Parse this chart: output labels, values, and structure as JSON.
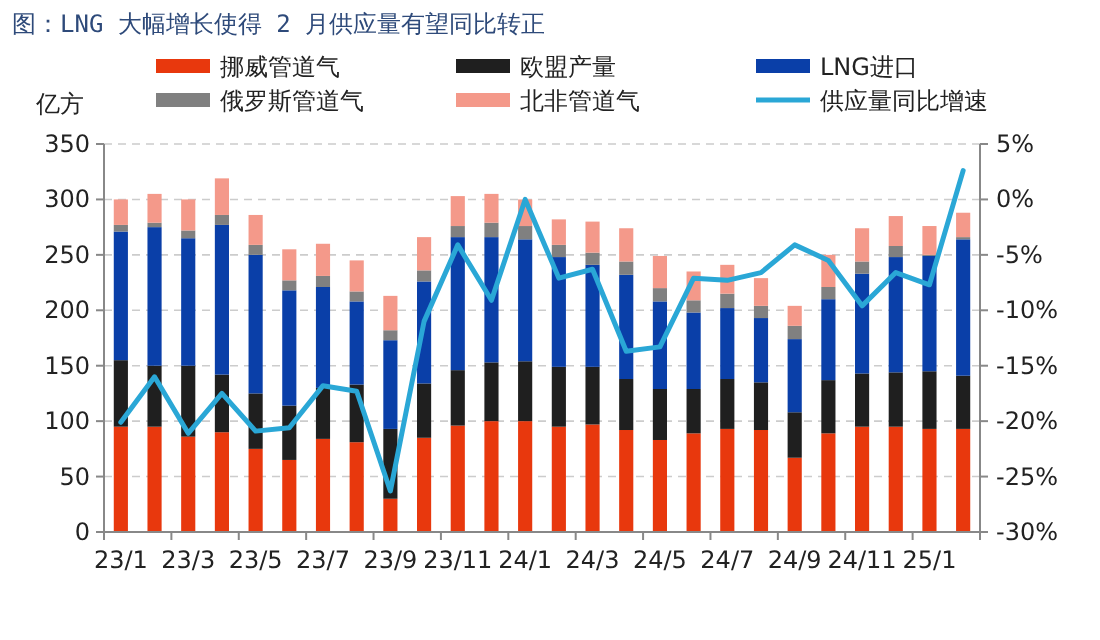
{
  "chart_data": {
    "type": "bar",
    "title": "图：LNG 大幅增长使得 2 月供应量有望同比转正",
    "ylabel": "亿方",
    "stacked": true,
    "grid": "y",
    "legend": "top",
    "categories": [
      "23/1",
      null,
      "23/3",
      null,
      "23/5",
      null,
      "23/7",
      null,
      "23/9",
      null,
      "23/11",
      null,
      "24/1",
      null,
      "24/3",
      null,
      "24/5",
      null,
      "24/7",
      null,
      "24/9",
      null,
      "24/11",
      null,
      "25/1",
      null
    ],
    "ylim": [
      0,
      350
    ],
    "yticks": [
      0,
      50,
      100,
      150,
      200,
      250,
      300,
      350
    ],
    "y2lim": [
      -30,
      5
    ],
    "y2ticks": [
      {
        "value": -30,
        "label": "-30%"
      },
      {
        "value": -25,
        "label": "-25%"
      },
      {
        "value": -20,
        "label": "-20%"
      },
      {
        "value": -15,
        "label": "-15%"
      },
      {
        "value": -10,
        "label": "-10%"
      },
      {
        "value": -5,
        "label": "-5%"
      },
      {
        "value": 0,
        "label": "0%"
      },
      {
        "value": 5,
        "label": "5%"
      }
    ],
    "series": [
      {
        "name": "挪威管道气",
        "color": "#e8380d",
        "values": [
          95,
          95,
          86,
          90,
          75,
          65,
          84,
          81,
          30,
          85,
          96,
          100,
          100,
          95,
          97,
          92,
          83,
          89,
          93,
          92,
          67,
          89,
          95,
          95,
          93,
          93
        ]
      },
      {
        "name": "欧盟产量",
        "color": "#1f1f1f",
        "values": [
          60,
          55,
          64,
          52,
          50,
          49,
          46,
          52,
          63,
          49,
          50,
          53,
          54,
          54,
          52,
          46,
          46,
          40,
          45,
          43,
          41,
          48,
          48,
          49,
          52,
          48
        ]
      },
      {
        "name": "LNG进口",
        "color": "#0a3fa8",
        "values": [
          116,
          125,
          115,
          135,
          125,
          104,
          91,
          75,
          80,
          92,
          120,
          113,
          110,
          99,
          92,
          94,
          79,
          69,
          64,
          58,
          66,
          73,
          90,
          104,
          104,
          123
        ]
      },
      {
        "name": "俄罗斯管道气",
        "color": "#808080",
        "values": [
          6,
          4,
          7,
          9,
          9,
          9,
          10,
          9,
          9,
          10,
          10,
          13,
          12,
          11,
          11,
          12,
          12,
          11,
          13,
          11,
          12,
          11,
          11,
          10,
          1,
          2
        ]
      },
      {
        "name": "北非管道气",
        "color": "#f4998a",
        "values": [
          23,
          26,
          28,
          33,
          27,
          28,
          29,
          28,
          31,
          30,
          27,
          26,
          24,
          23,
          28,
          30,
          29,
          26,
          26,
          25,
          18,
          29,
          30,
          27,
          26,
          22
        ]
      },
      {
        "name": "供应量同比增速",
        "type": "line",
        "axis": "y2",
        "color": "#2aa7d6",
        "values": [
          -20.1,
          -16.0,
          -21.1,
          -17.5,
          -20.9,
          -20.6,
          -16.8,
          -17.3,
          -26.3,
          -11.0,
          -4.1,
          -9.1,
          0.0,
          -7.1,
          -6.3,
          -13.7,
          -13.3,
          -7.1,
          -7.3,
          -6.6,
          -4.1,
          -5.5,
          -9.6,
          -6.6,
          -7.7,
          2.6
        ]
      }
    ]
  }
}
